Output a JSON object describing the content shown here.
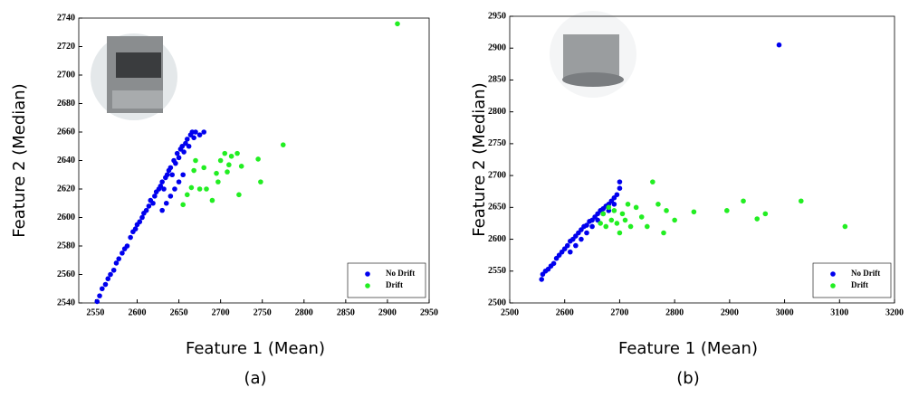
{
  "chart_data": [
    {
      "type": "scatter",
      "caption": "(a)",
      "xlabel": "Feature 1 (Mean)",
      "ylabel": "Feature 2 (Median)",
      "xlim": [
        2530,
        2950
      ],
      "xticks": [
        2550,
        2600,
        2650,
        2700,
        2750,
        2800,
        2850,
        2900,
        2950
      ],
      "ylim": [
        2540,
        2740
      ],
      "yticks": [
        2540,
        2560,
        2580,
        2600,
        2620,
        2640,
        2660,
        2680,
        2700,
        2720,
        2740
      ],
      "legend": "lower right",
      "series": [
        {
          "name": "No Drift",
          "color": "#0000ee",
          "x": [
            2552,
            2555,
            2558,
            2562,
            2565,
            2568,
            2572,
            2575,
            2578,
            2582,
            2585,
            2588,
            2592,
            2595,
            2598,
            2600,
            2603,
            2606,
            2608,
            2611,
            2614,
            2616,
            2619,
            2621,
            2623,
            2626,
            2628,
            2630,
            2632,
            2634,
            2636,
            2638,
            2640,
            2642,
            2644,
            2646,
            2648,
            2650,
            2652,
            2654,
            2656,
            2658,
            2660,
            2662,
            2664,
            2666,
            2668,
            2670,
            2675,
            2680,
            2640,
            2645,
            2650,
            2655,
            2635,
            2630
          ],
          "values": [
            2541,
            2545,
            2550,
            2553,
            2557,
            2560,
            2563,
            2568,
            2571,
            2575,
            2578,
            2580,
            2586,
            2590,
            2592,
            2595,
            2597,
            2600,
            2603,
            2605,
            2608,
            2612,
            2610,
            2615,
            2618,
            2620,
            2622,
            2625,
            2620,
            2628,
            2630,
            2633,
            2635,
            2630,
            2640,
            2638,
            2645,
            2642,
            2648,
            2650,
            2646,
            2652,
            2655,
            2650,
            2658,
            2660,
            2656,
            2660,
            2658,
            2660,
            2615,
            2620,
            2625,
            2630,
            2610,
            2605
          ]
        },
        {
          "name": "Drift",
          "color": "#22ee22",
          "x": [
            2655,
            2660,
            2665,
            2668,
            2670,
            2675,
            2680,
            2683,
            2690,
            2695,
            2697,
            2700,
            2705,
            2708,
            2710,
            2713,
            2720,
            2722,
            2725,
            2745,
            2748,
            2775,
            2912
          ],
          "values": [
            2609,
            2616,
            2621,
            2633,
            2640,
            2620,
            2635,
            2620,
            2612,
            2631,
            2625,
            2640,
            2645,
            2632,
            2637,
            2643,
            2645,
            2616,
            2636,
            2641,
            2625,
            2651,
            2736
          ]
        }
      ]
    },
    {
      "type": "scatter",
      "caption": "(b)",
      "xlabel": "Feature 1 (Mean)",
      "ylabel": "Feature 2 (Median)",
      "xlim": [
        2500,
        3200
      ],
      "xticks": [
        2500,
        2600,
        2700,
        2800,
        2900,
        3000,
        3100,
        3200
      ],
      "ylim": [
        2500,
        2950
      ],
      "yticks": [
        2500,
        2550,
        2600,
        2650,
        2700,
        2750,
        2800,
        2850,
        2900,
        2950
      ],
      "legend": "lower right",
      "series": [
        {
          "name": "No Drift",
          "color": "#0000ee",
          "x": [
            2558,
            2560,
            2565,
            2570,
            2575,
            2580,
            2585,
            2590,
            2595,
            2600,
            2605,
            2610,
            2615,
            2620,
            2625,
            2630,
            2635,
            2640,
            2645,
            2650,
            2655,
            2660,
            2665,
            2670,
            2675,
            2680,
            2685,
            2690,
            2695,
            2700,
            2610,
            2620,
            2630,
            2640,
            2650,
            2660,
            2670,
            2680,
            2690,
            2700,
            2990
          ],
          "values": [
            2537,
            2545,
            2550,
            2553,
            2558,
            2562,
            2570,
            2575,
            2580,
            2585,
            2590,
            2597,
            2600,
            2605,
            2610,
            2615,
            2620,
            2622,
            2628,
            2630,
            2635,
            2640,
            2645,
            2648,
            2652,
            2655,
            2660,
            2665,
            2670,
            2690,
            2580,
            2590,
            2600,
            2610,
            2620,
            2630,
            2640,
            2645,
            2655,
            2680,
            2905
          ]
        },
        {
          "name": "Drift",
          "color": "#22ee22",
          "x": [
            2665,
            2670,
            2675,
            2680,
            2685,
            2690,
            2695,
            2700,
            2705,
            2710,
            2715,
            2720,
            2730,
            2740,
            2750,
            2760,
            2770,
            2780,
            2785,
            2800,
            2835,
            2895,
            2925,
            2950,
            2965,
            3030,
            3110
          ],
          "values": [
            2625,
            2640,
            2620,
            2650,
            2630,
            2645,
            2625,
            2610,
            2640,
            2630,
            2655,
            2620,
            2650,
            2635,
            2620,
            2690,
            2655,
            2610,
            2645,
            2630,
            2643,
            2645,
            2660,
            2632,
            2640,
            2660,
            2620
          ]
        }
      ]
    }
  ]
}
